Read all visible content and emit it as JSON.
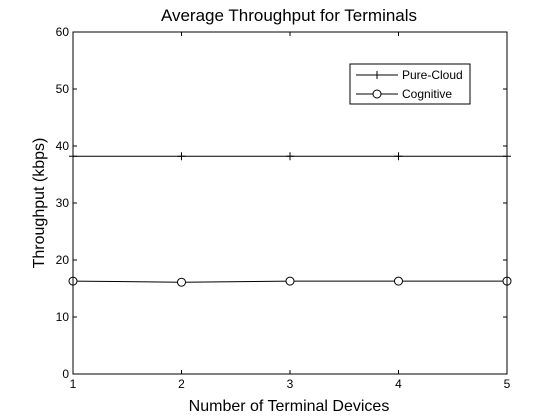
{
  "chart_data": {
    "type": "line",
    "title": "Average Throughput for Terminals",
    "xlabel": "Number of Terminal Devices",
    "ylabel": "Throughput (kbps)",
    "xlim": [
      1,
      5
    ],
    "ylim": [
      0,
      60
    ],
    "xticks": [
      1,
      2,
      3,
      4,
      5
    ],
    "yticks": [
      0,
      10,
      20,
      30,
      40,
      50,
      60
    ],
    "grid": false,
    "legend_position": "top-right",
    "x": [
      1,
      2,
      3,
      4,
      5
    ],
    "series": [
      {
        "name": "Pure-Cloud",
        "marker": "plus",
        "color": "#000000",
        "values": [
          38.2,
          38.2,
          38.2,
          38.2,
          38.2
        ]
      },
      {
        "name": "Cognitive",
        "marker": "circle",
        "color": "#000000",
        "values": [
          16.3,
          16.1,
          16.3,
          16.3,
          16.3
        ]
      }
    ]
  }
}
